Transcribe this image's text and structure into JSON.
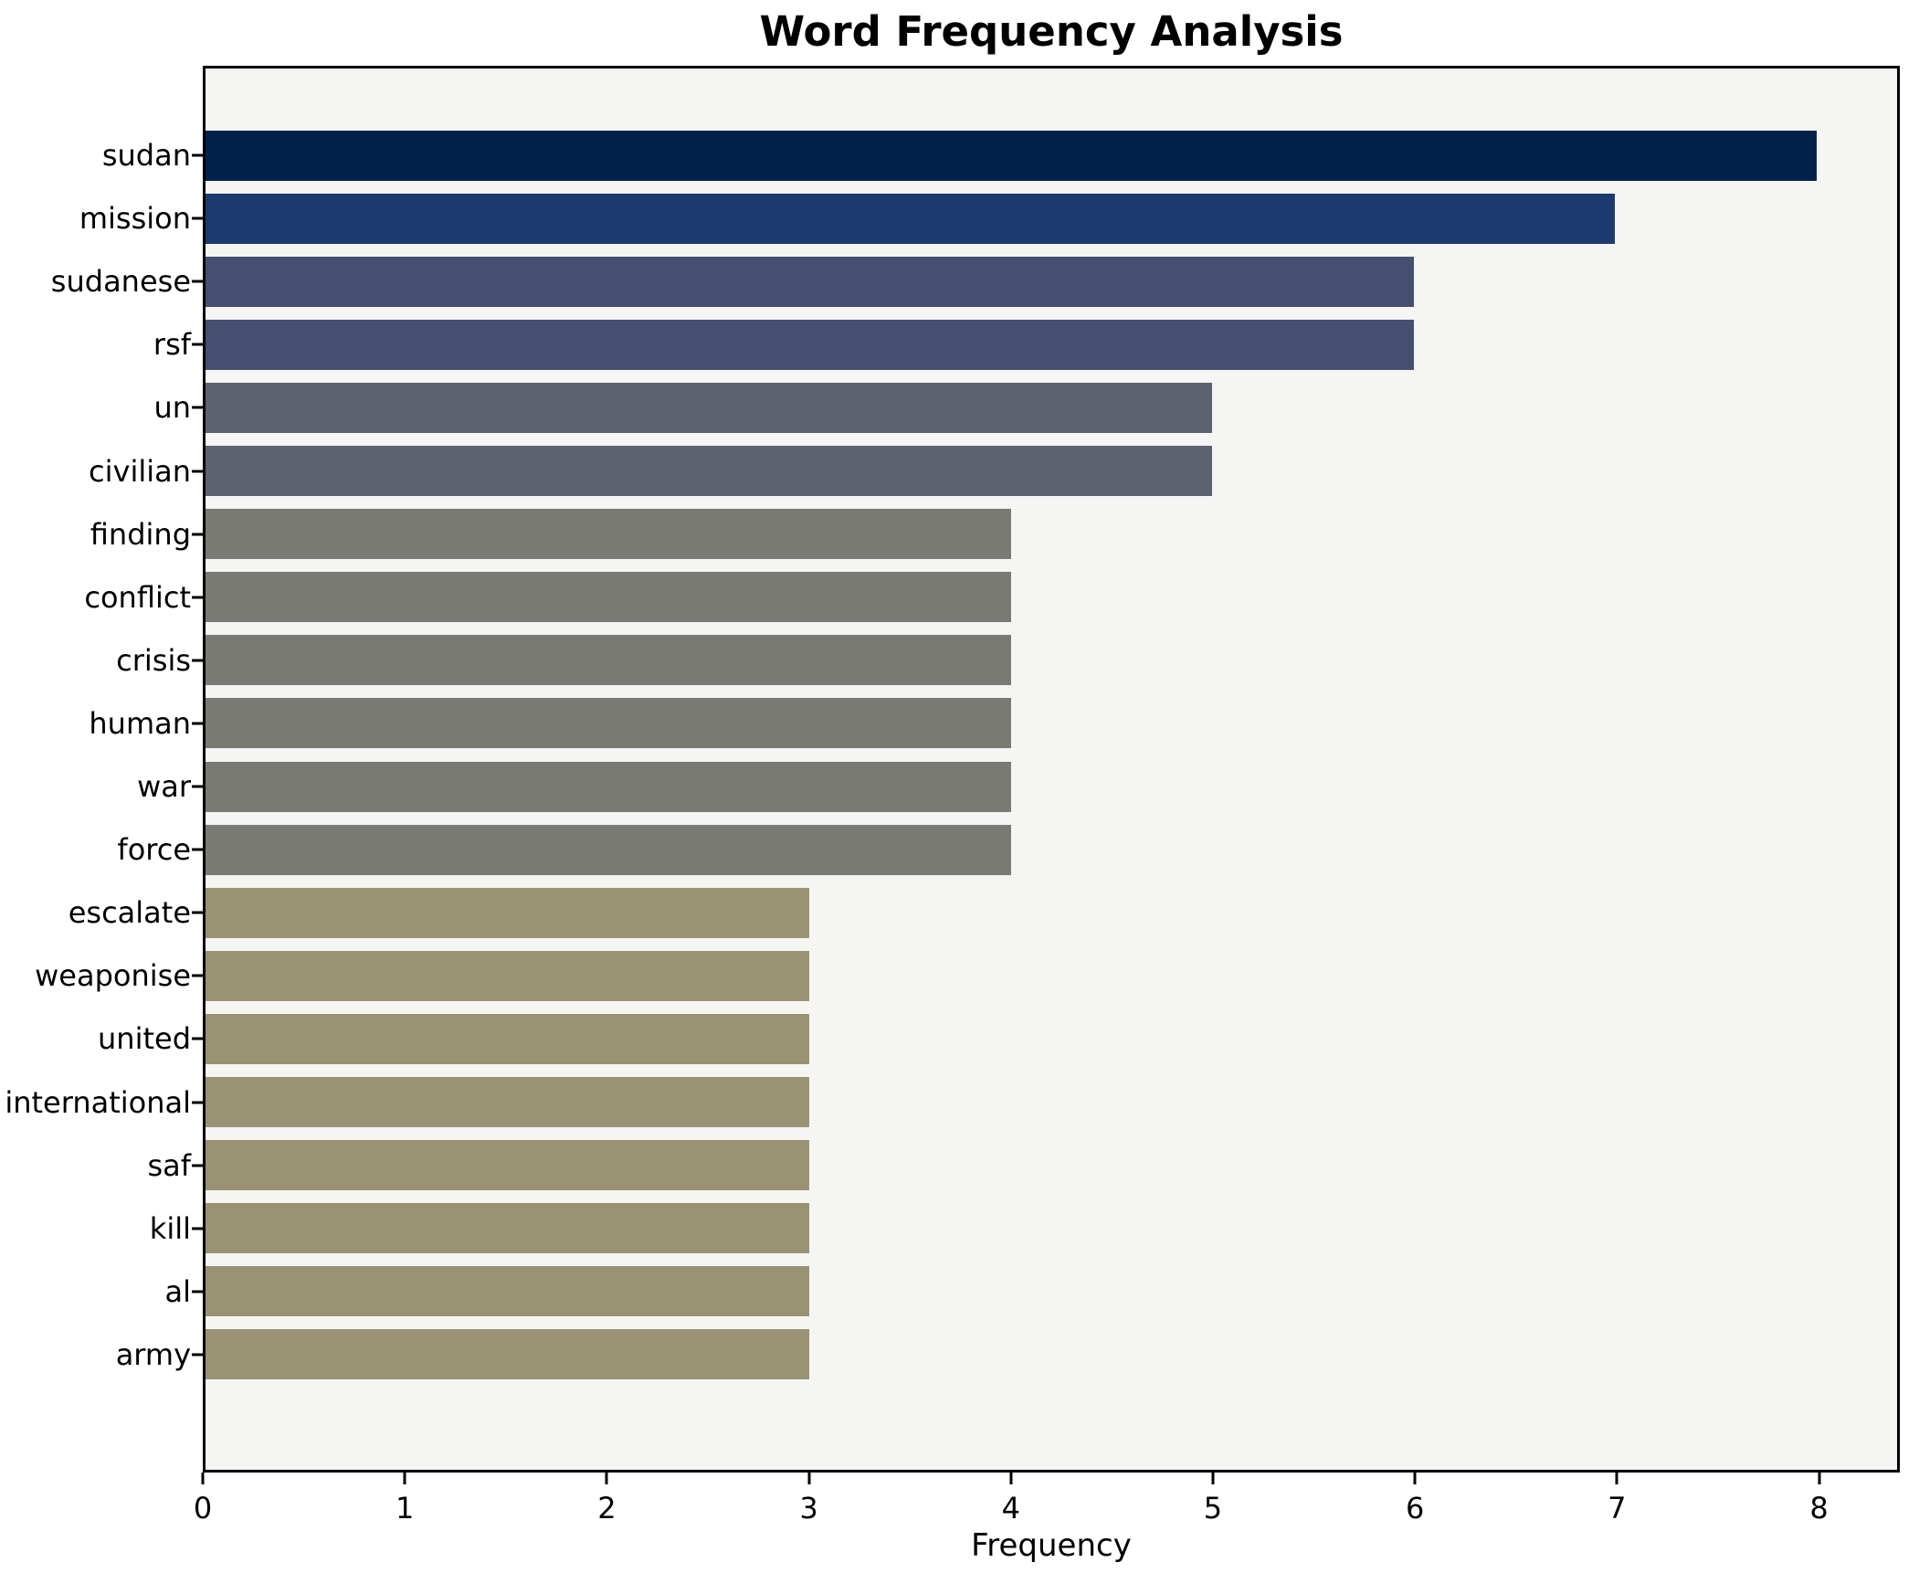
{
  "title": "Word Frequency Analysis",
  "chart_data": {
    "type": "bar",
    "orientation": "horizontal",
    "title": "Word Frequency Analysis",
    "xlabel": "Frequency",
    "ylabel": "",
    "categories": [
      "sudan",
      "mission",
      "sudanese",
      "rsf",
      "un",
      "civilian",
      "finding",
      "conflict",
      "crisis",
      "human",
      "war",
      "force",
      "escalate",
      "weaponise",
      "united",
      "international",
      "saf",
      "kill",
      "al",
      "army"
    ],
    "values": [
      8,
      7,
      6,
      6,
      5,
      5,
      4,
      4,
      4,
      4,
      4,
      4,
      3,
      3,
      3,
      3,
      3,
      3,
      3,
      3
    ],
    "bar_colors": [
      "#02224d",
      "#1d3a6e",
      "#455070",
      "#455070",
      "#5e616e",
      "#5e616e",
      "#7a7a75",
      "#7a7a75",
      "#7a7a75",
      "#7a7a75",
      "#7a7a75",
      "#7a7a75",
      "#9a9274",
      "#9a9274",
      "#9a9274",
      "#9a9274",
      "#9a9274",
      "#9a9274",
      "#9a9274",
      "#9a9274"
    ],
    "xticks": [
      0,
      1,
      2,
      3,
      4,
      5,
      6,
      7,
      8
    ],
    "xlim": [
      0,
      8.4
    ],
    "grid": false,
    "legend": false,
    "plot_background": "#f5f5f4",
    "figure_background": "#ffffff",
    "spine_color": "#000000"
  }
}
